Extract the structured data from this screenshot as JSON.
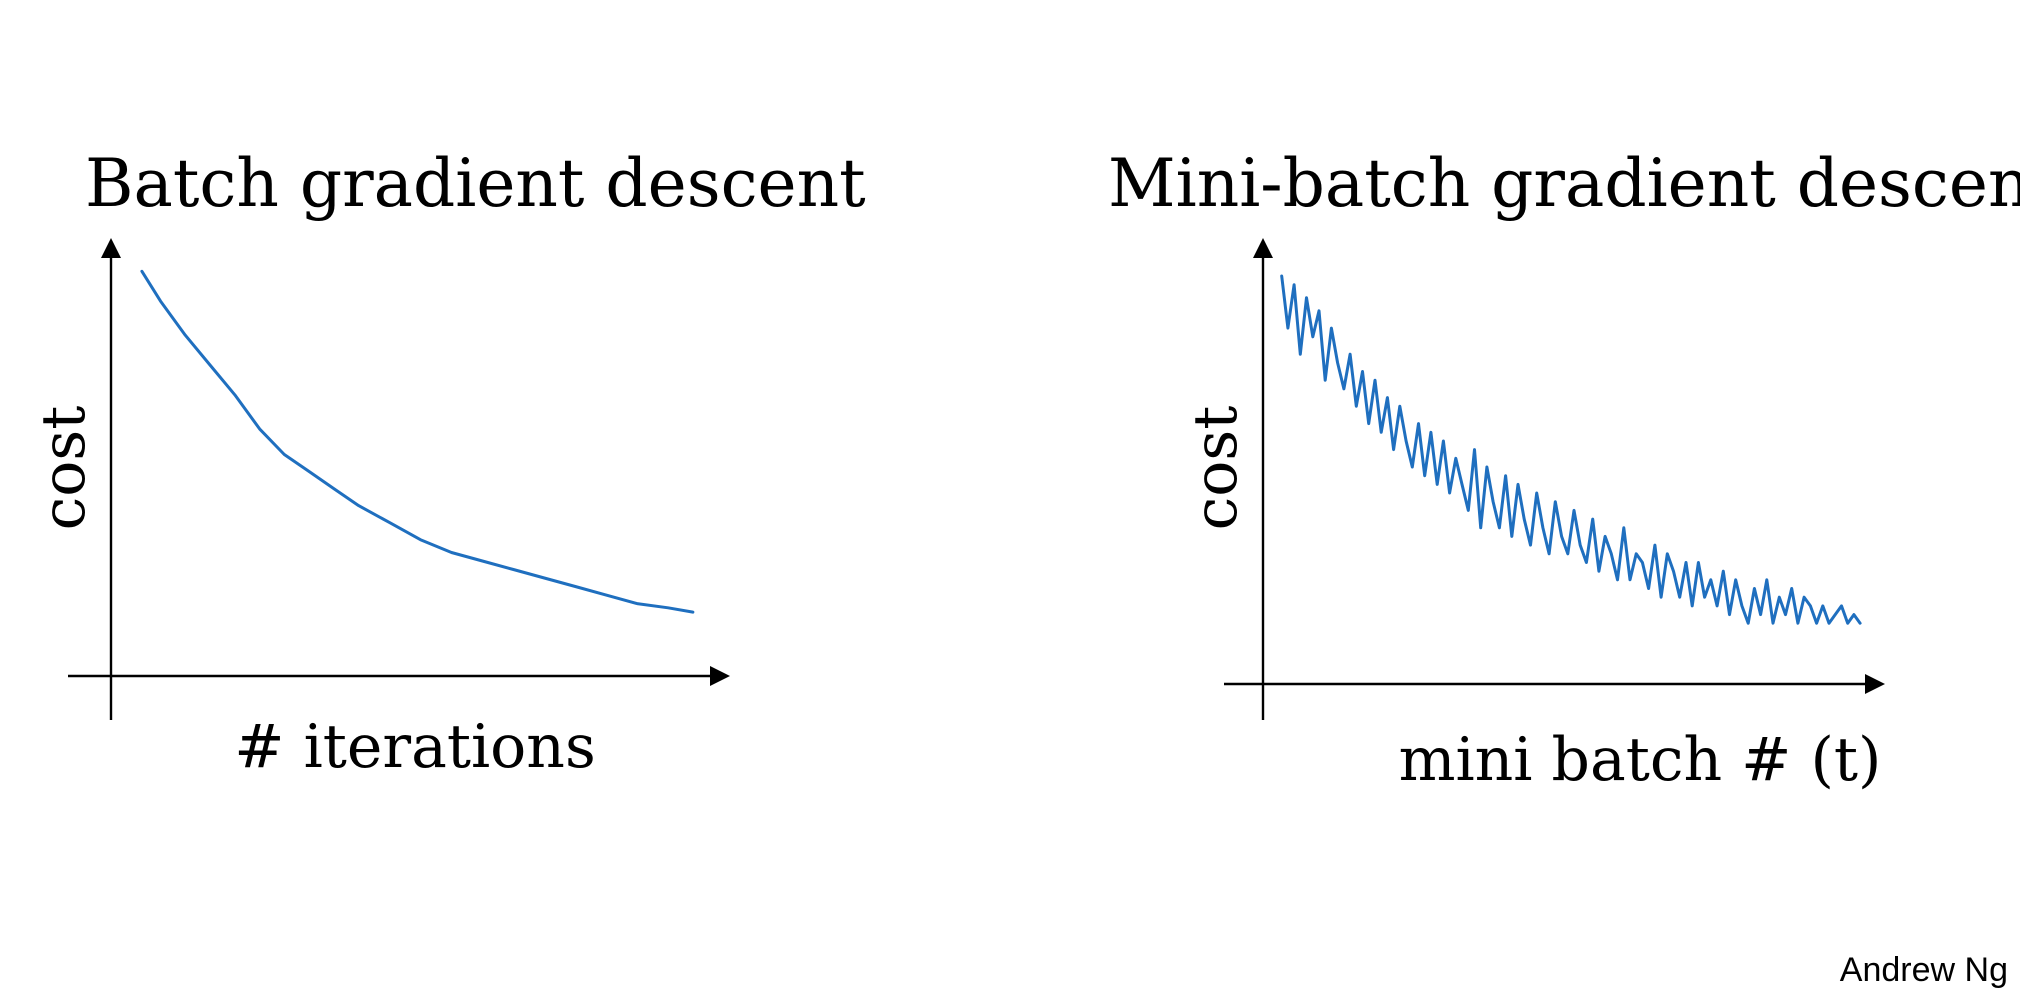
{
  "colors": {
    "curve": "#1f6fbf",
    "axis": "#000000"
  },
  "credit": "Andrew Ng",
  "chart_data": [
    {
      "type": "line",
      "title": "Batch gradient descent",
      "xlabel": "# iterations",
      "ylabel": "cost",
      "xlim": [
        0,
        100
      ],
      "ylim": [
        0,
        100
      ],
      "grid": false,
      "series": [
        {
          "x": [
            5,
            8,
            12,
            16,
            20,
            24,
            28,
            32,
            36,
            40,
            45,
            50,
            55,
            60,
            65,
            70,
            75,
            80,
            85,
            90,
            94
          ],
          "y": [
            95,
            88,
            80,
            73,
            66,
            58,
            52,
            48,
            44,
            40,
            36,
            32,
            29,
            27,
            25,
            23,
            21,
            19,
            17,
            16,
            15
          ]
        }
      ]
    },
    {
      "type": "line",
      "title": "Mini-batch gradient descent",
      "xlabel": "mini batch # (t)",
      "ylabel": "cost",
      "xlim": [
        0,
        100
      ],
      "ylim": [
        0,
        100
      ],
      "grid": false,
      "series": [
        {
          "x": [
            3,
            4,
            5,
            6,
            7,
            8,
            9,
            10,
            11,
            12,
            13,
            14,
            15,
            16,
            17,
            18,
            19,
            20,
            21,
            22,
            23,
            24,
            25,
            26,
            27,
            28,
            29,
            30,
            31,
            32,
            33,
            34,
            35,
            36,
            37,
            38,
            39,
            40,
            41,
            42,
            43,
            44,
            45,
            46,
            47,
            48,
            49,
            50,
            51,
            52,
            53,
            54,
            55,
            56,
            57,
            58,
            59,
            60,
            61,
            62,
            63,
            64,
            65,
            66,
            67,
            68,
            69,
            70,
            71,
            72,
            73,
            74,
            75,
            76,
            77,
            78,
            79,
            80,
            81,
            82,
            83,
            84,
            85,
            86,
            87,
            88,
            89,
            90,
            91,
            92,
            93,
            94,
            95,
            96
          ],
          "y": [
            94,
            82,
            92,
            76,
            89,
            80,
            86,
            70,
            82,
            74,
            68,
            76,
            64,
            72,
            60,
            70,
            58,
            66,
            54,
            64,
            56,
            50,
            60,
            48,
            58,
            46,
            56,
            44,
            52,
            46,
            40,
            54,
            36,
            50,
            42,
            36,
            48,
            34,
            46,
            38,
            32,
            44,
            36,
            30,
            42,
            34,
            30,
            40,
            32,
            28,
            38,
            26,
            34,
            30,
            24,
            36,
            24,
            30,
            28,
            22,
            32,
            20,
            30,
            26,
            20,
            28,
            18,
            28,
            20,
            24,
            18,
            26,
            16,
            24,
            18,
            14,
            22,
            16,
            24,
            14,
            20,
            16,
            22,
            14,
            20,
            18,
            14,
            18,
            14,
            16,
            18,
            14,
            16,
            14
          ]
        }
      ]
    }
  ]
}
